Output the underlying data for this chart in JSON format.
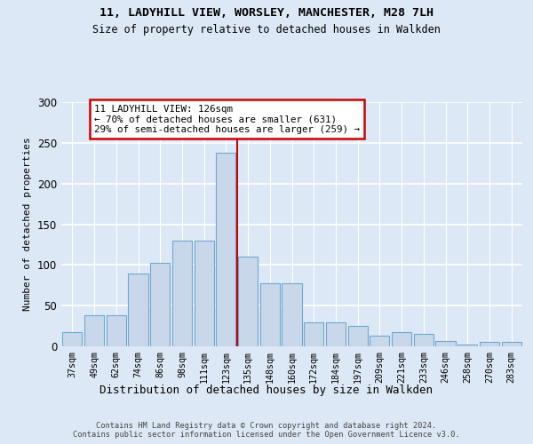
{
  "title_line1": "11, LADYHILL VIEW, WORSLEY, MANCHESTER, M28 7LH",
  "title_line2": "Size of property relative to detached houses in Walkden",
  "xlabel": "Distribution of detached houses by size in Walkden",
  "ylabel": "Number of detached properties",
  "bar_labels": [
    "37sqm",
    "49sqm",
    "62sqm",
    "74sqm",
    "86sqm",
    "98sqm",
    "111sqm",
    "123sqm",
    "135sqm",
    "148sqm",
    "160sqm",
    "172sqm",
    "184sqm",
    "197sqm",
    "209sqm",
    "221sqm",
    "233sqm",
    "246sqm",
    "258sqm",
    "270sqm",
    "283sqm"
  ],
  "bar_values": [
    18,
    38,
    38,
    90,
    103,
    130,
    130,
    238,
    110,
    78,
    78,
    30,
    30,
    25,
    13,
    18,
    15,
    7,
    2,
    5,
    5
  ],
  "bar_fill": "#c8d8ea",
  "bar_edge": "#6fa8d0",
  "red_line_idx": 7.5,
  "annotation_title": "11 LADYHILL VIEW: 126sqm",
  "annotation_line1": "← 70% of detached houses are smaller (631)",
  "annotation_line2": "29% of semi-detached houses are larger (259) →",
  "red_color": "#cc0000",
  "ylim_max": 300,
  "ytick_vals": [
    0,
    50,
    100,
    150,
    200,
    250,
    300
  ],
  "bg_color": "#dce8f5",
  "grid_color": "#ffffff",
  "footer1": "Contains HM Land Registry data © Crown copyright and database right 2024.",
  "footer2": "Contains public sector information licensed under the Open Government Licence v3.0."
}
